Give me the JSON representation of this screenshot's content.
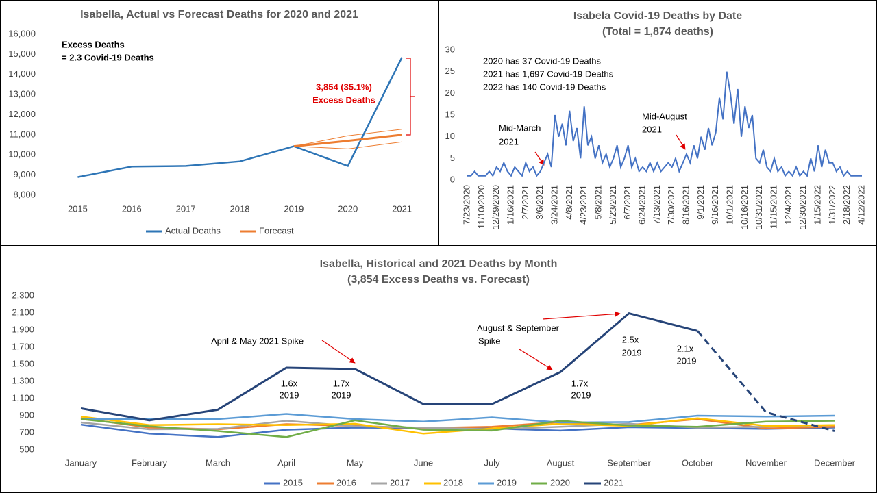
{
  "chart_data": [
    {
      "type": "line",
      "title": "Isabella, Actual vs Forecast Deaths for 2020 and 2021",
      "categories": [
        "2015",
        "2016",
        "2017",
        "2018",
        "2019",
        "2020",
        "2021"
      ],
      "series": [
        {
          "name": "Actual Deaths",
          "color": "#2e75b6",
          "values": [
            8900,
            9420,
            9450,
            9680,
            10430,
            9450,
            14850
          ]
        },
        {
          "name": "Forecast",
          "color": "#ed7d31",
          "values": [
            null,
            null,
            null,
            null,
            10430,
            10700,
            11000
          ]
        }
      ],
      "forecast_band": {
        "color": "#ed7d31",
        "upper": [
          null,
          null,
          null,
          null,
          10430,
          10950,
          11280
        ],
        "lower": [
          null,
          null,
          null,
          null,
          10430,
          10300,
          10650
        ]
      },
      "ylim": [
        8000,
        16000
      ],
      "yticks": [
        {
          "value": 8000,
          "label": "8,000"
        },
        {
          "value": 9000,
          "label": "9,000"
        },
        {
          "value": 10000,
          "label": "10,000"
        },
        {
          "value": 11000,
          "label": "11,000"
        },
        {
          "value": 12000,
          "label": "12,000"
        },
        {
          "value": 13000,
          "label": "13,000"
        },
        {
          "value": 14000,
          "label": "14,000"
        },
        {
          "value": 15000,
          "label": "15,000"
        },
        {
          "value": 16000,
          "label": "16,000"
        }
      ],
      "grid": false,
      "legend": "bottom",
      "annotations": [
        "Excess Deaths",
        "= 2.3 Covid-19 Deaths",
        "3,854 (35.1%)",
        "Excess Deaths"
      ]
    },
    {
      "type": "line",
      "title": [
        "Isabela Covid-19 Deaths by Date",
        "(Total = 1,874 deaths)"
      ],
      "categories": [
        "7/23/2020",
        null,
        null,
        null,
        "11/10/2020",
        null,
        null,
        null,
        "12/29/2020",
        null,
        null,
        null,
        "1/16/2021",
        null,
        null,
        null,
        "2/7/2021",
        null,
        null,
        null,
        "3/6/2021",
        null,
        null,
        null,
        "3/24/2021",
        null,
        null,
        null,
        "4/8/2021",
        null,
        null,
        null,
        "4/23/2021",
        null,
        null,
        null,
        "5/8/2021",
        null,
        null,
        null,
        "5/23/2021",
        null,
        null,
        null,
        "6/7/2021",
        null,
        null,
        null,
        "6/24/2021",
        null,
        null,
        null,
        "7/13/2021",
        null,
        null,
        null,
        "7/30/2021",
        null,
        null,
        null,
        "8/16/2021",
        null,
        null,
        null,
        "9/1/2021",
        null,
        null,
        null,
        "9/16/2021",
        null,
        null,
        null,
        "10/1/2021",
        null,
        null,
        null,
        "10/16/2021",
        null,
        null,
        null,
        "10/31/2021",
        null,
        null,
        null,
        "11/15/2021",
        null,
        null,
        null,
        "12/4/2021",
        null,
        null,
        null,
        "12/30/2021",
        null,
        null,
        null,
        "1/15/2022",
        null,
        null,
        null,
        "1/31/2022",
        null,
        null,
        null,
        "2/18/2022",
        null,
        null,
        null,
        "4/12/2022"
      ],
      "series": [
        {
          "color": "#4472c4",
          "values": [
            1,
            1,
            2,
            1,
            1,
            1,
            2,
            1,
            3,
            2,
            4,
            2,
            1,
            3,
            2,
            1,
            4,
            2,
            3,
            1,
            2,
            4,
            6,
            3,
            15,
            10,
            13,
            8,
            16,
            9,
            12,
            5,
            17,
            8,
            10,
            5,
            8,
            4,
            6,
            3,
            5,
            8,
            3,
            5,
            8,
            3,
            5,
            2,
            3,
            2,
            4,
            2,
            4,
            2,
            3,
            4,
            3,
            5,
            2,
            4,
            6,
            4,
            8,
            5,
            10,
            7,
            12,
            8,
            11,
            19,
            14,
            25,
            20,
            13,
            21,
            10,
            17,
            12,
            15,
            5,
            4,
            7,
            3,
            2,
            5,
            2,
            3,
            1,
            2,
            1,
            3,
            1,
            2,
            1,
            5,
            2,
            8,
            3,
            7,
            4,
            4,
            2,
            3,
            1,
            2,
            1,
            1,
            1,
            1
          ]
        }
      ],
      "ylim": [
        0,
        30
      ],
      "yticks": [
        0,
        5,
        10,
        15,
        20,
        25,
        30
      ],
      "grid": false,
      "annotations": [
        "2020 has 37 Covid-19 Deaths",
        "2021 has 1,697 Covid-19 Deaths",
        "2022 has 140 Covid-19 Deaths",
        "Mid-March",
        "2021",
        "Mid-August",
        "2021"
      ]
    },
    {
      "type": "line",
      "title": [
        "Isabella, Historical and 2021 Deaths by Month",
        "(3,854 Excess Deaths vs. Forecast)"
      ],
      "categories": [
        "January",
        "February",
        "March",
        "April",
        "May",
        "June",
        "July",
        "August",
        "September",
        "October",
        "November",
        "December"
      ],
      "series": [
        {
          "name": "2015",
          "color": "#4472c4",
          "values": [
            795,
            690,
            650,
            735,
            760,
            755,
            750,
            725,
            765,
            755,
            745,
            760
          ]
        },
        {
          "name": "2016",
          "color": "#ed7d31",
          "values": [
            870,
            760,
            740,
            800,
            780,
            755,
            770,
            825,
            790,
            860,
            750,
            770
          ]
        },
        {
          "name": "2017",
          "color": "#a5a5a5",
          "values": [
            820,
            740,
            745,
            840,
            775,
            760,
            740,
            770,
            805,
            760,
            770,
            790
          ]
        },
        {
          "name": "2018",
          "color": "#ffc000",
          "values": [
            890,
            790,
            800,
            790,
            805,
            690,
            750,
            805,
            780,
            870,
            780,
            790
          ]
        },
        {
          "name": "2019",
          "color": "#5b9bd5",
          "values": [
            860,
            860,
            860,
            920,
            860,
            830,
            880,
            820,
            825,
            900,
            890,
            900
          ]
        },
        {
          "name": "2020",
          "color": "#70ad47",
          "values": [
            860,
            775,
            720,
            650,
            845,
            735,
            725,
            840,
            785,
            770,
            830,
            840
          ]
        },
        {
          "name": "2021",
          "color": "#264478",
          "values": [
            985,
            845,
            970,
            1460,
            1445,
            1035,
            1035,
            1410,
            2095,
            1890,
            940,
            720
          ],
          "dashed_from_index": 9
        }
      ],
      "ylim": [
        500,
        2300
      ],
      "yticks": [
        500,
        700,
        900,
        {
          "value": 1100,
          "label": "1,100"
        },
        {
          "value": 1300,
          "label": "1,300"
        },
        {
          "value": 1500,
          "label": "1,500"
        },
        {
          "value": 1700,
          "label": "1,700"
        },
        {
          "value": 1900,
          "label": "1,900"
        },
        {
          "value": 2100,
          "label": "2,100"
        },
        {
          "value": 2300,
          "label": "2,300"
        }
      ],
      "grid": false,
      "legend": "bottom",
      "annotations": [
        "April & May 2021 Spike",
        "1.6x",
        "2019",
        "1.7x",
        "2019",
        "August & September",
        "Spike",
        "1.7x",
        "2019",
        "2.5x",
        "2019",
        "2.1x",
        "2019"
      ]
    }
  ]
}
